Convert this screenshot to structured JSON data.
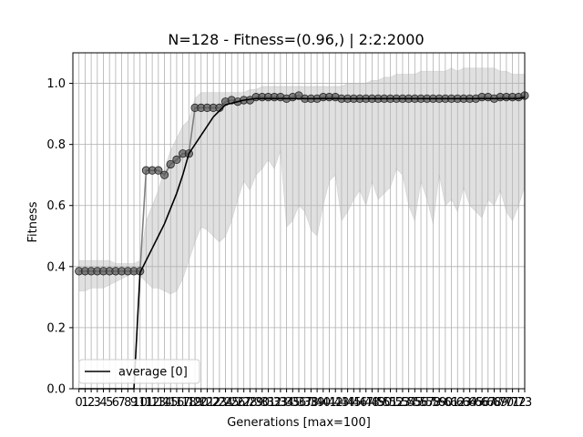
{
  "chart_data": {
    "type": "line",
    "title": "N=128  - Fitness=(0.96,) | 2:2:2000",
    "xlabel": "Generations [max=100]",
    "ylabel": "Fitness",
    "xlim": [
      -1,
      73
    ],
    "ylim": [
      0.0,
      1.1
    ],
    "grid": true,
    "legend_position": "lower-left",
    "y_ticks": [
      "0.0",
      "0.2",
      "0.4",
      "0.6",
      "0.8",
      "1.0"
    ],
    "x": [
      0,
      1,
      2,
      3,
      4,
      5,
      6,
      7,
      8,
      9,
      10,
      11,
      12,
      13,
      14,
      15,
      16,
      17,
      18,
      19,
      20,
      21,
      22,
      23,
      24,
      25,
      26,
      27,
      28,
      29,
      30,
      31,
      32,
      33,
      34,
      35,
      36,
      37,
      38,
      39,
      40,
      41,
      42,
      43,
      44,
      45,
      46,
      47,
      48,
      49,
      50,
      51,
      52,
      53,
      54,
      55,
      56,
      57,
      58,
      59,
      60,
      61,
      62,
      63,
      64,
      65,
      66,
      67,
      68,
      69,
      70,
      71,
      72,
      73
    ],
    "series": [
      {
        "name": "average [0]",
        "color": "#000000",
        "values": [
          0,
          0,
          0,
          0,
          0,
          0,
          0,
          0,
          0,
          0,
          0.38,
          0.42,
          0.46,
          0.5,
          0.54,
          0.59,
          0.64,
          0.7,
          0.77,
          0.8,
          0.83,
          0.86,
          0.89,
          0.91,
          0.93,
          0.935,
          0.94,
          0.945,
          0.948,
          0.95,
          0.95,
          0.95,
          0.95,
          0.95,
          0.95,
          0.95,
          0.95,
          0.95,
          0.95,
          0.95,
          0.95,
          0.95,
          0.95,
          0.95,
          0.95,
          0.95,
          0.95,
          0.95,
          0.95,
          0.95,
          0.95,
          0.95,
          0.95,
          0.95,
          0.95,
          0.95,
          0.95,
          0.95,
          0.95,
          0.95,
          0.95,
          0.95,
          0.95,
          0.95,
          0.95,
          0.95,
          0.95,
          0.95,
          0.95,
          0.95,
          0.95,
          0.95,
          0.95,
          0.955
        ]
      },
      {
        "color": "#555555",
        "values": [
          0.385,
          0.385,
          0.385,
          0.385,
          0.385,
          0.385,
          0.385,
          0.385,
          0.385,
          0.385,
          0.385,
          0.715,
          0.715,
          0.715,
          0.7,
          0.735,
          0.75,
          0.77,
          0.77,
          0.92,
          0.92,
          0.92,
          0.92,
          0.92,
          0.94,
          0.945,
          0.94,
          0.945,
          0.945,
          0.955,
          0.955,
          0.955,
          0.955,
          0.955,
          0.95,
          0.955,
          0.96,
          0.95,
          0.95,
          0.95,
          0.955,
          0.955,
          0.955,
          0.95,
          0.95,
          0.95,
          0.95,
          0.95,
          0.95,
          0.95,
          0.95,
          0.95,
          0.95,
          0.95,
          0.95,
          0.95,
          0.95,
          0.95,
          0.95,
          0.95,
          0.95,
          0.95,
          0.95,
          0.95,
          0.95,
          0.95,
          0.955,
          0.955,
          0.95,
          0.955,
          0.955,
          0.955,
          0.955,
          0.96
        ]
      }
    ],
    "band": {
      "color": "#bbbbbb",
      "upper": [
        0.42,
        0.42,
        0.42,
        0.42,
        0.42,
        0.42,
        0.41,
        0.41,
        0.41,
        0.41,
        0.42,
        0.55,
        0.6,
        0.65,
        0.72,
        0.78,
        0.82,
        0.86,
        0.88,
        0.95,
        0.97,
        0.97,
        0.97,
        0.97,
        0.97,
        0.97,
        0.97,
        0.97,
        0.98,
        0.98,
        0.99,
        0.99,
        0.99,
        0.99,
        0.99,
        0.99,
        0.99,
        0.99,
        0.99,
        0.99,
        0.99,
        0.99,
        0.99,
        0.99,
        1.0,
        1.0,
        1.0,
        1.0,
        1.01,
        1.01,
        1.02,
        1.02,
        1.03,
        1.03,
        1.03,
        1.03,
        1.04,
        1.04,
        1.04,
        1.04,
        1.04,
        1.05,
        1.04,
        1.05,
        1.05,
        1.05,
        1.05,
        1.05,
        1.05,
        1.04,
        1.04,
        1.03,
        1.03,
        1.03
      ],
      "lower": [
        0.32,
        0.32,
        0.33,
        0.33,
        0.33,
        0.34,
        0.35,
        0.36,
        0.37,
        0.38,
        0.37,
        0.35,
        0.33,
        0.33,
        0.32,
        0.31,
        0.32,
        0.36,
        0.42,
        0.48,
        0.53,
        0.52,
        0.5,
        0.48,
        0.5,
        0.55,
        0.62,
        0.68,
        0.65,
        0.7,
        0.72,
        0.75,
        0.72,
        0.78,
        0.53,
        0.55,
        0.6,
        0.58,
        0.52,
        0.5,
        0.6,
        0.68,
        0.7,
        0.55,
        0.58,
        0.62,
        0.65,
        0.6,
        0.68,
        0.62,
        0.64,
        0.66,
        0.72,
        0.7,
        0.6,
        0.55,
        0.68,
        0.62,
        0.54,
        0.7,
        0.6,
        0.62,
        0.58,
        0.66,
        0.6,
        0.58,
        0.56,
        0.62,
        0.6,
        0.65,
        0.58,
        0.55,
        0.6,
        0.66
      ]
    },
    "x_tick_labels": [
      "0",
      "1",
      "2",
      "3",
      "4",
      "5",
      "6",
      "7",
      "8",
      "9",
      "10",
      "11",
      "12",
      "13",
      "14",
      "15",
      "16",
      "17",
      "18",
      "19",
      "20",
      "21",
      "22",
      "23",
      "24",
      "25",
      "26",
      "27",
      "28",
      "29",
      "30",
      "31",
      "32",
      "33",
      "34",
      "35",
      "36",
      "37",
      "38",
      "39",
      "40",
      "41",
      "42",
      "43",
      "44",
      "45",
      "46",
      "47",
      "48",
      "49",
      "50",
      "51",
      "52",
      "53",
      "54",
      "55",
      "56",
      "57",
      "58",
      "59",
      "60",
      "61",
      "62",
      "63",
      "64",
      "65",
      "66",
      "67",
      "68",
      "69",
      "70",
      "71",
      "72",
      "73"
    ]
  }
}
